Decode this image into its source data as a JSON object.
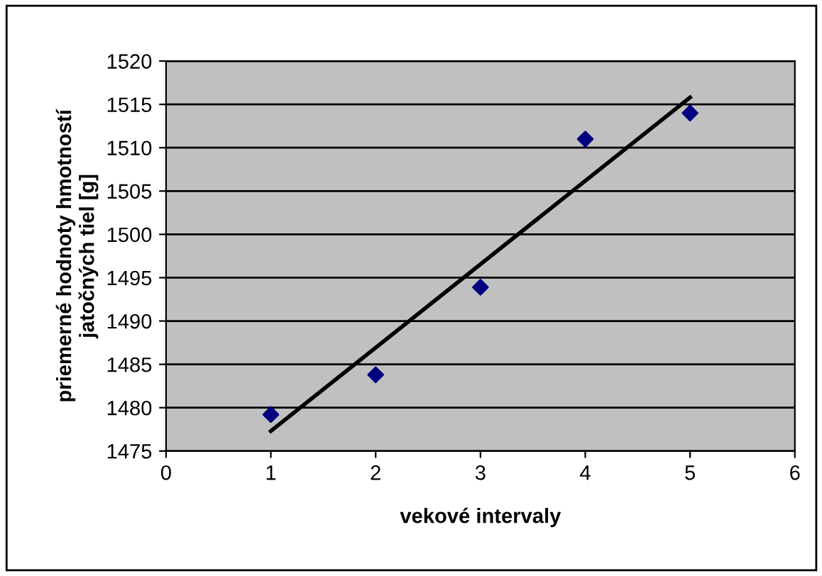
{
  "chart_data": {
    "type": "scatter",
    "xlabel": "vekové intervaly",
    "ylabel": "priemerné hodnoty hmotností\njatočných tiel [g]",
    "x": [
      1,
      2,
      3,
      4,
      5
    ],
    "series": [
      {
        "color": "#000080",
        "marker": "diamond",
        "values": [
          1479.2,
          1483.8,
          1493.9,
          1511,
          1514
        ]
      },
      {
        "type": "line",
        "color": "#000000",
        "marker": "none",
        "x": [
          1,
          5
        ],
        "values": [
          1477.3,
          1515.8
        ]
      }
    ],
    "xlim": [
      0,
      6
    ],
    "xticks": [
      0,
      1,
      2,
      3,
      4,
      5,
      6
    ],
    "ylim": [
      1475,
      1520
    ],
    "yticks": [
      1475,
      1480,
      1485,
      1490,
      1495,
      1500,
      1505,
      1510,
      1515,
      1520
    ],
    "grid": "y",
    "legend": false
  }
}
